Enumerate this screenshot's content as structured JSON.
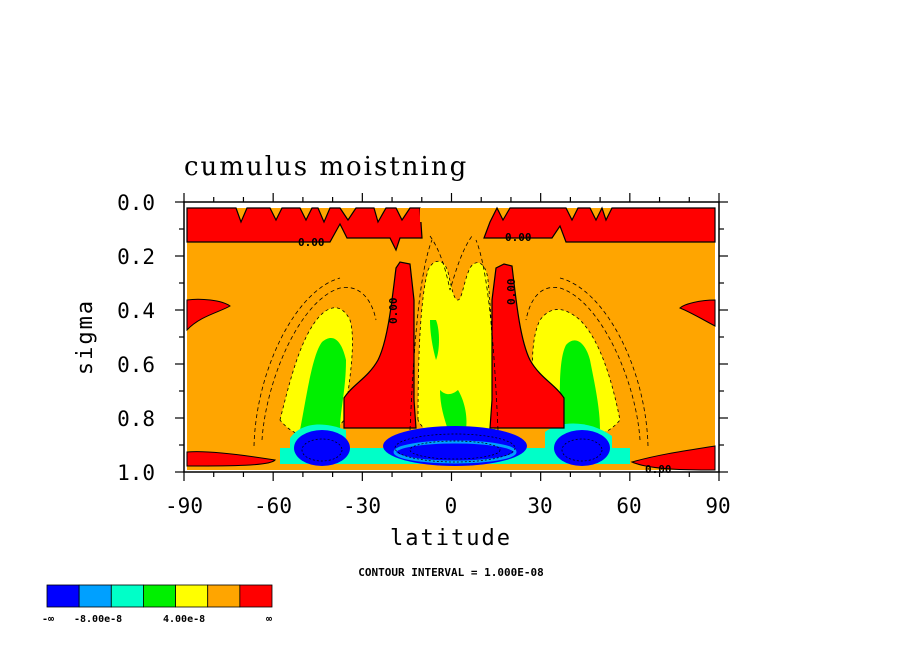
{
  "chart_data": {
    "type": "heatmap",
    "title": "cumulus moistning",
    "xlabel": "latitude",
    "ylabel": "sigma",
    "xlim": [
      -90,
      90
    ],
    "ylim": [
      1.0,
      0.0
    ],
    "x_ticks": [
      "-90",
      "-60",
      "-30",
      "0",
      "30",
      "60",
      "90"
    ],
    "y_ticks": [
      "0.0",
      "0.2",
      "0.4",
      "0.6",
      "0.8",
      "1.0"
    ],
    "contour_interval_text": "CONTOUR INTERVAL = 1.000E-08",
    "contour_labels": [
      "0.00",
      "0.00",
      "0.00",
      "0.00",
      "0.00"
    ],
    "colorbar": {
      "colors": [
        "#0000ff",
        "#00a0ff",
        "#00ffc8",
        "#00f000",
        "#ffff00",
        "#ffa500",
        "#ff0000"
      ],
      "labels": [
        "-∞",
        "-8.00e-8",
        "4.00e-8",
        "∞"
      ]
    },
    "regions": [
      {
        "color": "#ff0000",
        "lat": [
          -88,
          88
        ],
        "sigma": [
          0.03,
          0.15
        ],
        "note": "upper positive band"
      },
      {
        "color": "#ff0000",
        "lat": [
          -38,
          -14
        ],
        "sigma": [
          0.24,
          0.84
        ],
        "note": "left red column"
      },
      {
        "color": "#ff0000",
        "lat": [
          14,
          38
        ],
        "sigma": [
          0.24,
          0.84
        ],
        "note": "right red column"
      },
      {
        "color": "#ff0000",
        "lat": [
          -90,
          -75
        ],
        "sigma": [
          0.36,
          0.45
        ],
        "note": "left edge"
      },
      {
        "color": "#ff0000",
        "lat": [
          77,
          90
        ],
        "sigma": [
          0.36,
          0.45
        ],
        "note": "right edge"
      },
      {
        "color": "#ffff00",
        "lat": [
          -12,
          12
        ],
        "sigma": [
          0.28,
          0.8
        ],
        "note": "central yellow"
      },
      {
        "color": "#ffff00",
        "lat": [
          -55,
          -30
        ],
        "sigma": [
          0.4,
          0.88
        ],
        "note": "left yellow"
      },
      {
        "color": "#ffff00",
        "lat": [
          30,
          55
        ],
        "sigma": [
          0.4,
          0.88
        ],
        "note": "right yellow"
      },
      {
        "color": "#00f000",
        "lat": [
          -52,
          -35
        ],
        "sigma": [
          0.5,
          0.92
        ],
        "note": "left green"
      },
      {
        "color": "#00f000",
        "lat": [
          35,
          52
        ],
        "sigma": [
          0.5,
          0.92
        ],
        "note": "right green"
      },
      {
        "color": "#0000ff",
        "lat": [
          -55,
          -30
        ],
        "sigma": [
          0.85,
          0.99
        ],
        "note": "left blue"
      },
      {
        "color": "#0000ff",
        "lat": [
          -22,
          25
        ],
        "sigma": [
          0.84,
          0.99
        ],
        "note": "central blue"
      },
      {
        "color": "#0000ff",
        "lat": [
          35,
          55
        ],
        "sigma": [
          0.85,
          0.99
        ],
        "note": "right blue"
      }
    ]
  }
}
